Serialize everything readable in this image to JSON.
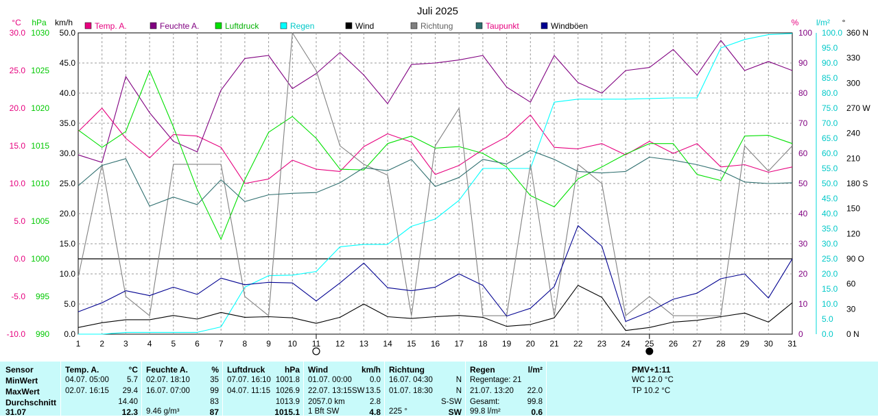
{
  "chart_data": {
    "type": "line",
    "title": "Juli 2025",
    "x": [
      1,
      2,
      3,
      4,
      5,
      6,
      7,
      8,
      9,
      10,
      11,
      12,
      13,
      14,
      15,
      16,
      17,
      18,
      19,
      20,
      21,
      22,
      23,
      24,
      25,
      26,
      27,
      28,
      29,
      30,
      31
    ],
    "xlim": [
      1,
      31
    ],
    "x_markers": {
      "new_moon": 11,
      "full_moon": 25
    },
    "axes": {
      "temp": {
        "unit": "°C",
        "range": [
          -10,
          30
        ],
        "step": 5,
        "ticks": [
          "30.0",
          "25.0",
          "20.0",
          "15.0",
          "10.0",
          "5.0",
          "0.0",
          "-5.0",
          "-10.0"
        ],
        "color": "#e6007e"
      },
      "press": {
        "unit": "hPa",
        "range": [
          990,
          1030
        ],
        "step": 5,
        "ticks": [
          "1030",
          "1025",
          "1020",
          "1015",
          "1010",
          "1005",
          "1000",
          "995",
          "990"
        ],
        "color": "#00c800"
      },
      "wind": {
        "unit": "km/h",
        "range": [
          0,
          50
        ],
        "step": 5,
        "ticks": [
          "50.0",
          "45.0",
          "40.0",
          "35.0",
          "30.0",
          "25.0",
          "20.0",
          "15.0",
          "10.0",
          "5.0",
          "0.0"
        ],
        "color": "#000000"
      },
      "hum": {
        "unit": "%",
        "range": [
          0,
          100
        ],
        "step": 10,
        "ticks": [
          "100",
          "90",
          "80",
          "70",
          "60",
          "50",
          "40",
          "30",
          "20",
          "10",
          "0"
        ],
        "color": "#800080"
      },
      "rain": {
        "unit": "l/m²",
        "range": [
          0,
          100
        ],
        "step": 5,
        "ticks": [
          "100.0",
          "95.0",
          "90.0",
          "85.0",
          "80.0",
          "75.0",
          "70.0",
          "65.0",
          "60.0",
          "55.0",
          "50.0",
          "45.0",
          "40.0",
          "35.0",
          "30.0",
          "25.0",
          "20.0",
          "15.0",
          "10.0",
          "5.0",
          "0.0"
        ],
        "color": "#00d8d8"
      },
      "dir": {
        "unit": "°",
        "range": [
          0,
          360
        ],
        "ticks": [
          "360 N",
          "330",
          "300",
          "270 W",
          "240",
          "210",
          "180 S",
          "150",
          "120",
          "90 O",
          "60",
          "30",
          "0 N"
        ],
        "color": "#000000"
      }
    },
    "legend": [
      {
        "label": "Temp. A.",
        "color": "#e6007e",
        "text_color": "#e6007e"
      },
      {
        "label": "Feuchte A.",
        "color": "#800080",
        "text_color": "#800080"
      },
      {
        "label": "Luftdruck",
        "color": "#00e000",
        "text_color": "#00b000"
      },
      {
        "label": "Regen",
        "color": "#00ffff",
        "text_color": "#00c8c8"
      },
      {
        "label": "Wind",
        "color": "#000000",
        "text_color": "#000000"
      },
      {
        "label": "Richtung",
        "color": "#808080",
        "text_color": "#606060"
      },
      {
        "label": "Taupunkt",
        "color": "#2f6f6f",
        "text_color": "#e6007e"
      },
      {
        "label": "Windböen",
        "color": "#000090",
        "text_color": "#000000"
      }
    ],
    "series": [
      {
        "name": "Temp. A.",
        "axis": "temp",
        "color": "#e6007e",
        "values": [
          16.9,
          20.0,
          16.0,
          13.4,
          16.5,
          16.3,
          14.8,
          10.0,
          10.6,
          13.1,
          11.9,
          11.6,
          14.9,
          16.6,
          15.5,
          11.2,
          12.4,
          14.5,
          16.2,
          19.1,
          14.8,
          14.6,
          15.3,
          13.8,
          15.6,
          14.0,
          15.3,
          12.2,
          12.5,
          11.5,
          12.2
        ]
      },
      {
        "name": "Feuchte A.",
        "axis": "hum",
        "color": "#800080",
        "values": [
          59.5,
          57.0,
          85.5,
          73.5,
          64.0,
          60.5,
          81.0,
          91.5,
          92.5,
          81.5,
          86.5,
          93.5,
          86.0,
          76.5,
          89.5,
          90.0,
          91.0,
          92.5,
          82.0,
          77.0,
          92.5,
          83.5,
          80.0,
          87.5,
          88.5,
          94.5,
          86.0,
          97.5,
          87.5,
          90.5,
          87.5
        ]
      },
      {
        "name": "Luftdruck",
        "axis": "press",
        "color": "#00e000",
        "values": [
          1017.1,
          1014.8,
          1016.9,
          1025.0,
          1017.5,
          1009.2,
          1002.6,
          1010.5,
          1016.8,
          1018.9,
          1016.0,
          1011.9,
          1011.8,
          1015.3,
          1016.3,
          1014.7,
          1014.9,
          1014.0,
          1012.2,
          1008.4,
          1006.9,
          1010.6,
          1012.2,
          1013.9,
          1015.3,
          1015.3,
          1011.2,
          1010.4,
          1016.3,
          1016.4,
          1015.3
        ]
      },
      {
        "name": "Regen",
        "axis": "rain",
        "color": "#00ffff",
        "values": [
          0.0,
          0.0,
          0.6,
          0.6,
          0.6,
          0.6,
          2.4,
          15.6,
          19.4,
          19.6,
          20.8,
          29.0,
          29.8,
          29.8,
          35.8,
          38.2,
          44.4,
          55.0,
          55.0,
          55.0,
          77.0,
          78.0,
          78.0,
          78.0,
          78.2,
          78.4,
          78.4,
          95.0,
          97.8,
          99.4,
          99.8
        ]
      },
      {
        "name": "Wind",
        "axis": "wind",
        "color": "#000000",
        "values": [
          1.1,
          1.9,
          2.4,
          2.4,
          3.1,
          2.5,
          3.6,
          2.8,
          2.9,
          2.7,
          1.8,
          2.8,
          5.0,
          2.9,
          2.6,
          2.9,
          3.1,
          2.8,
          1.3,
          1.6,
          2.7,
          8.1,
          6.1,
          0.6,
          1.1,
          2.0,
          2.3,
          2.9,
          3.5,
          2.0,
          5.2
        ]
      },
      {
        "name": "Richtung",
        "axis": "dir",
        "color": "#808080",
        "values": [
          68,
          203,
          45,
          22,
          203,
          203,
          203,
          45,
          22,
          360,
          315,
          225,
          203,
          190,
          22,
          225,
          270,
          22,
          22,
          203,
          22,
          203,
          180,
          22,
          45,
          22,
          22,
          22,
          225,
          195,
          225
        ]
      },
      {
        "name": "Taupunkt",
        "axis": "temp",
        "color": "#2f6f6f",
        "values": [
          9.7,
          12.4,
          13.3,
          7.0,
          8.2,
          7.2,
          10.5,
          7.6,
          8.5,
          8.7,
          8.8,
          10.1,
          12.1,
          11.7,
          13.2,
          9.6,
          10.8,
          13.2,
          12.6,
          14.4,
          13.2,
          11.6,
          11.4,
          11.6,
          13.5,
          13.1,
          12.5,
          11.7,
          10.2,
          10.0,
          10.1
        ]
      },
      {
        "name": "Windböen",
        "axis": "wind",
        "color": "#000090",
        "values": [
          3.7,
          5.2,
          7.2,
          6.4,
          7.8,
          6.6,
          9.3,
          8.2,
          8.6,
          8.5,
          5.5,
          8.5,
          11.8,
          7.7,
          7.2,
          7.8,
          10.0,
          8.1,
          3.0,
          4.3,
          7.9,
          18.0,
          14.6,
          2.1,
          3.7,
          5.8,
          6.8,
          9.2,
          10.0,
          6.0,
          12.5
        ]
      }
    ]
  },
  "table": {
    "row_labels": {
      "h": "Sensor",
      "min": "MinWert",
      "max": "MaxWert",
      "avg": "Durchschnitt",
      "last": "31.07"
    },
    "temp": {
      "h": "Temp. A.",
      "u": "°C",
      "min_t": "04.07.  05:00",
      "min_v": "5.7",
      "max_t": "02.07.  16:15",
      "max_v": "29.4",
      "avg_v": "14.40",
      "last_v": "12.3"
    },
    "hum": {
      "h": "Feuchte A.",
      "u": "%",
      "min_t": "02.07.  18:10",
      "min_v": "35",
      "max_t": "16.07.  07:00",
      "max_v": "99",
      "avg_v": "83",
      "last_t": "9.46 g/m³",
      "last_v": "87"
    },
    "press": {
      "h": "Luftdruck",
      "u": "hPa",
      "min_t": "07.07.  16:10",
      "min_v": "1001.8",
      "max_t": "04.07.  11:15",
      "max_v": "1026.9",
      "avg_v": "1013.9",
      "last_v": "1015.1"
    },
    "wind": {
      "h": "Wind",
      "u": "km/h",
      "min_t": "01.07.  00:00",
      "min_v": "0.0",
      "max_t": "22.07.  13:15SW",
      "max_v": "13.5",
      "avg_t": "2057.0 km",
      "avg_v": "2.8",
      "last_t": "1 Bft SW",
      "last_v": "4.8"
    },
    "dir": {
      "h": "Richtung",
      "min_t": "16.07.  04:30",
      "min_v": "N",
      "max_t": "01.07.  18:30",
      "max_v": "N",
      "avg_v": "S-SW",
      "last_t": "225 °",
      "last_v": "SW"
    },
    "rain": {
      "h": "Regen",
      "u": "l/m²",
      "min_t": "Regentage: 21",
      "max_t": "21.07.  13:20",
      "max_v": "22.0",
      "avg_t": "Gesamt:",
      "avg_v": "99.8",
      "last_t": "99.8 l/m²",
      "last_v": "0.6"
    },
    "extra": {
      "h": "PMV+1:11",
      "l1": "WC 12.0 °C",
      "l2": "TP 10.2 °C"
    }
  }
}
